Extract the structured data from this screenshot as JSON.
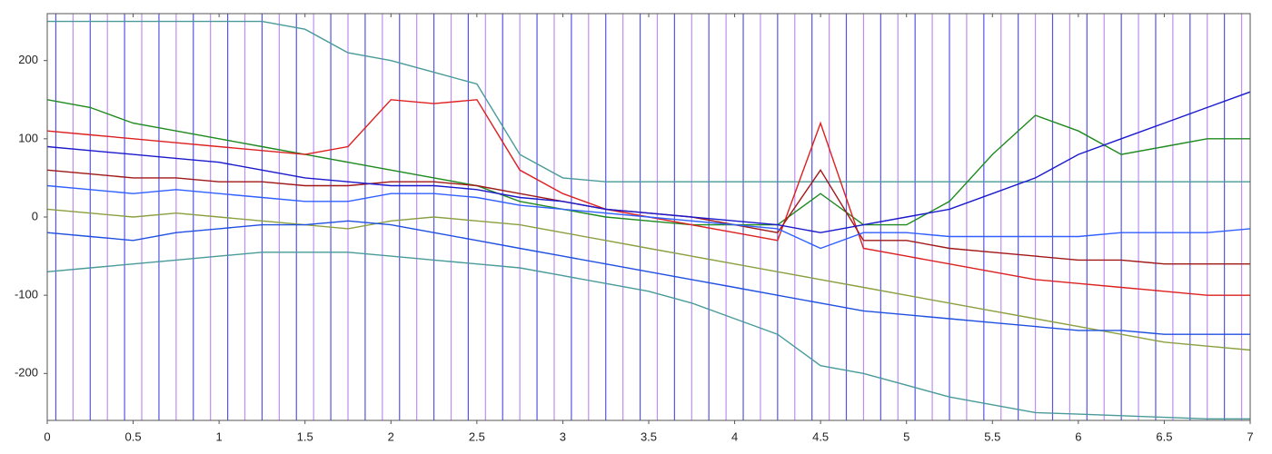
{
  "chart_data": {
    "type": "line",
    "xlim": [
      0,
      7
    ],
    "ylim": [
      -260,
      260
    ],
    "xticks": [
      0,
      0.5,
      1,
      1.5,
      2,
      2.5,
      3,
      3.5,
      4,
      4.5,
      5,
      5.5,
      6,
      6.5,
      7
    ],
    "yticks": [
      -200,
      -100,
      0,
      100,
      200
    ],
    "x": [
      0,
      0.25,
      0.5,
      0.75,
      1,
      1.25,
      1.5,
      1.75,
      2,
      2.25,
      2.5,
      2.75,
      3,
      3.25,
      3.5,
      3.75,
      4,
      4.25,
      4.5,
      4.75,
      5,
      5.25,
      5.5,
      5.75,
      6,
      6.25,
      6.5,
      6.75,
      7
    ],
    "markers": [
      {
        "color": "#2a2ae0",
        "x": [
          0.05,
          0.25,
          0.45,
          0.65,
          0.85,
          1.05,
          1.25,
          1.45,
          1.65,
          1.85,
          2.05,
          2.25,
          2.45,
          2.65,
          2.85,
          3.05,
          3.25,
          3.45,
          3.65,
          3.85,
          4.05,
          4.25,
          4.45,
          4.65,
          4.85,
          5.05,
          5.25,
          5.45,
          5.65,
          5.85,
          6.05,
          6.25,
          6.45,
          6.65,
          6.85
        ]
      },
      {
        "color": "#b070f0",
        "x": [
          0.15,
          0.35,
          0.55,
          0.75,
          0.95,
          1.15,
          1.35,
          1.55,
          1.75,
          1.95,
          2.15,
          2.35,
          2.55,
          2.75,
          2.95,
          3.15,
          3.35,
          3.55,
          3.75,
          3.95,
          4.15,
          4.35,
          4.55,
          4.75,
          4.95,
          5.15,
          5.35,
          5.55,
          5.75,
          5.95,
          6.15,
          6.35,
          6.55,
          6.75,
          6.95
        ]
      }
    ],
    "series": [
      {
        "color": "#4a9a9a",
        "values": [
          250,
          250,
          250,
          250,
          250,
          250,
          240,
          210,
          200,
          185,
          170,
          80,
          50,
          45,
          45,
          45,
          45,
          45,
          45,
          45,
          45,
          45,
          45,
          45,
          45,
          45,
          45,
          45,
          45
        ]
      },
      {
        "color": "#4a9a9a",
        "values": [
          -70,
          -65,
          -60,
          -55,
          -50,
          -45,
          -45,
          -45,
          -50,
          -55,
          -60,
          -65,
          -75,
          -85,
          -95,
          -110,
          -130,
          -150,
          -190,
          -200,
          -215,
          -230,
          -240,
          -250,
          -252,
          -254,
          -256,
          -258,
          -258
        ]
      },
      {
        "color": "#8aa040",
        "values": [
          10,
          5,
          0,
          5,
          0,
          -5,
          -10,
          -15,
          -5,
          0,
          -5,
          -10,
          -20,
          -30,
          -40,
          -50,
          -60,
          -70,
          -80,
          -90,
          -100,
          -110,
          -120,
          -130,
          -140,
          -150,
          -160,
          -165,
          -170
        ]
      },
      {
        "color": "#1f8a1f",
        "values": [
          150,
          140,
          120,
          110,
          100,
          90,
          80,
          70,
          60,
          50,
          40,
          20,
          10,
          0,
          -5,
          -10,
          -10,
          -10,
          30,
          -10,
          -10,
          20,
          80,
          130,
          110,
          80,
          90,
          100,
          100
        ]
      },
      {
        "color": "#dd2020",
        "values": [
          110,
          105,
          100,
          95,
          90,
          85,
          80,
          90,
          150,
          145,
          150,
          60,
          30,
          10,
          0,
          -10,
          -20,
          -30,
          120,
          -40,
          -50,
          -60,
          -70,
          -80,
          -85,
          -90,
          -95,
          -100,
          -100
        ]
      },
      {
        "color": "#a01818",
        "values": [
          60,
          55,
          50,
          50,
          45,
          45,
          40,
          40,
          45,
          45,
          40,
          30,
          20,
          10,
          5,
          0,
          -10,
          -20,
          60,
          -30,
          -30,
          -40,
          -45,
          -50,
          -55,
          -55,
          -60,
          -60,
          -60
        ]
      },
      {
        "color": "#2050e0",
        "values": [
          -20,
          -25,
          -30,
          -20,
          -15,
          -10,
          -10,
          -5,
          -10,
          -20,
          -30,
          -40,
          -50,
          -60,
          -70,
          -80,
          -90,
          -100,
          -110,
          -120,
          -125,
          -130,
          -135,
          -140,
          -145,
          -145,
          -150,
          -150,
          -150
        ]
      },
      {
        "color": "#1a1acc",
        "values": [
          90,
          85,
          80,
          75,
          70,
          60,
          50,
          45,
          40,
          40,
          35,
          25,
          20,
          10,
          5,
          0,
          -5,
          -10,
          -20,
          -10,
          0,
          10,
          30,
          50,
          80,
          100,
          120,
          140,
          160
        ]
      },
      {
        "color": "#3060ff",
        "values": [
          40,
          35,
          30,
          35,
          30,
          25,
          20,
          20,
          30,
          30,
          25,
          15,
          10,
          5,
          0,
          -5,
          -10,
          -15,
          -40,
          -20,
          -20,
          -25,
          -25,
          -25,
          -25,
          -20,
          -20,
          -20,
          -15
        ]
      }
    ]
  }
}
